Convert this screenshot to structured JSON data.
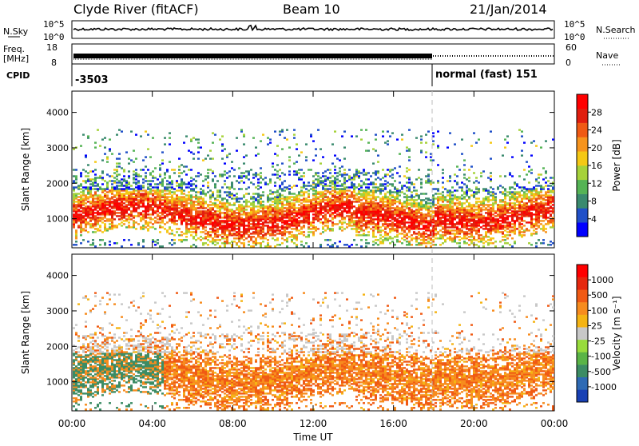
{
  "header": {
    "station": "Clyde River (fitACF)",
    "beam": "Beam 10",
    "date": "21/Jan/2014"
  },
  "nsky": {
    "label": "N.Sky",
    "tick_top": "10^5",
    "tick_bottom": "10^0",
    "right_label": "N.Search",
    "right_tick_top": "10^5",
    "right_tick_bottom": "10^0"
  },
  "freq": {
    "label_1": "Freq.",
    "label_2": "[MHz]",
    "tick_top": "18",
    "tick_bottom": "8",
    "right_label": "Nave",
    "right_tick_top": "60",
    "right_tick_bottom": "0"
  },
  "cpid": {
    "label": "CPID",
    "segments": [
      {
        "label": "-3503",
        "start_hour": 0
      },
      {
        "label": "normal (fast) 151",
        "start_hour": 18
      }
    ]
  },
  "time_axis": {
    "label": "Time UT",
    "ticks": [
      "00:00",
      "04:00",
      "08:00",
      "12:00",
      "16:00",
      "20:00",
      "00:00"
    ],
    "range_hours": [
      0,
      24
    ]
  },
  "chart_data": [
    {
      "type": "heatmap",
      "title": "",
      "xlabel": "Time UT",
      "ylabel": "Slant Range [km]",
      "xlim_hours": [
        0,
        24
      ],
      "ylim_km": [
        180,
        4600
      ],
      "yticks": [
        "1000",
        "2000",
        "3000",
        "4000"
      ],
      "colorbar": {
        "label": "Power [dB]",
        "ticks": [
          "4",
          "8",
          "12",
          "16",
          "20",
          "24",
          "28"
        ],
        "range": [
          0,
          30
        ],
        "colors": [
          "#0000ff",
          "#2050c8",
          "#3a8a6e",
          "#55b455",
          "#a6d23a",
          "#f5c814",
          "#f7941d",
          "#f05a14",
          "#e11e0e",
          "#ff0000"
        ]
      }
    },
    {
      "type": "heatmap",
      "title": "",
      "xlabel": "Time UT",
      "ylabel": "Slant Range [km]",
      "xlim_hours": [
        0,
        24
      ],
      "ylim_km": [
        180,
        4600
      ],
      "yticks": [
        "1000",
        "2000",
        "3000",
        "4000"
      ],
      "colorbar": {
        "label": "Velocity [m s⁻¹]",
        "ticks": [
          "1000",
          "500",
          "100",
          "25",
          "-25",
          "-100",
          "-500",
          "-1000"
        ],
        "colors": [
          "#1840b4",
          "#2e6ab4",
          "#3c8c64",
          "#5ab446",
          "#98dc3c",
          "#c8c8c8",
          "#f5b414",
          "#f78c1e",
          "#f05a14",
          "#e6280e",
          "#ff0000"
        ]
      },
      "ground_scatter_color": "#c8c8c8"
    }
  ]
}
